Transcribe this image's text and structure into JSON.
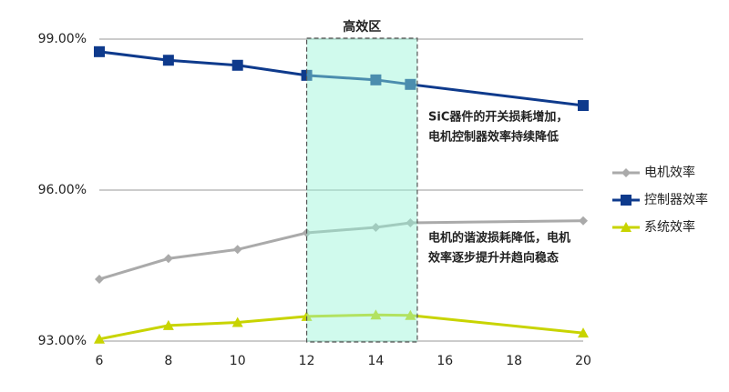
{
  "chart_data": {
    "type": "line",
    "x": [
      6,
      8,
      10,
      12,
      14,
      15,
      20
    ],
    "series": [
      {
        "name": "电机效率",
        "color": "#aaaaaa",
        "marker": "diamond",
        "values": [
          94.23,
          94.64,
          94.82,
          95.15,
          95.26,
          95.35,
          95.39
        ]
      },
      {
        "name": "控制器效率",
        "color": "#0e3a8c",
        "marker": "square",
        "values": [
          98.75,
          98.58,
          98.48,
          98.28,
          98.19,
          98.1,
          97.68
        ]
      },
      {
        "name": "系统效率",
        "color": "#c8d400",
        "marker": "triangle",
        "values": [
          93.04,
          93.31,
          93.37,
          93.49,
          93.52,
          93.51,
          93.16
        ]
      }
    ],
    "xlim": [
      6,
      20
    ],
    "xticks": [
      6,
      8,
      10,
      12,
      14,
      16,
      18,
      20
    ],
    "ylim": [
      93,
      99
    ],
    "yticks": [
      {
        "value": 93,
        "label": "93.00%"
      },
      {
        "value": 96,
        "label": "96.00%"
      },
      {
        "value": 99,
        "label": "99.00%"
      }
    ],
    "grid": true,
    "legend": "right",
    "highlight": {
      "label": "高效区",
      "range": [
        12,
        15.2
      ]
    },
    "annotations": [
      {
        "lines": [
          "SiC器件的开关损耗增加，",
          "电机控制器效率持续降低"
        ],
        "color": "#1f3fa0"
      },
      {
        "lines": [
          "电机的谐波损耗降低，电机",
          "效率逐步提升并趋向稳态"
        ],
        "color": "#888888"
      }
    ]
  }
}
